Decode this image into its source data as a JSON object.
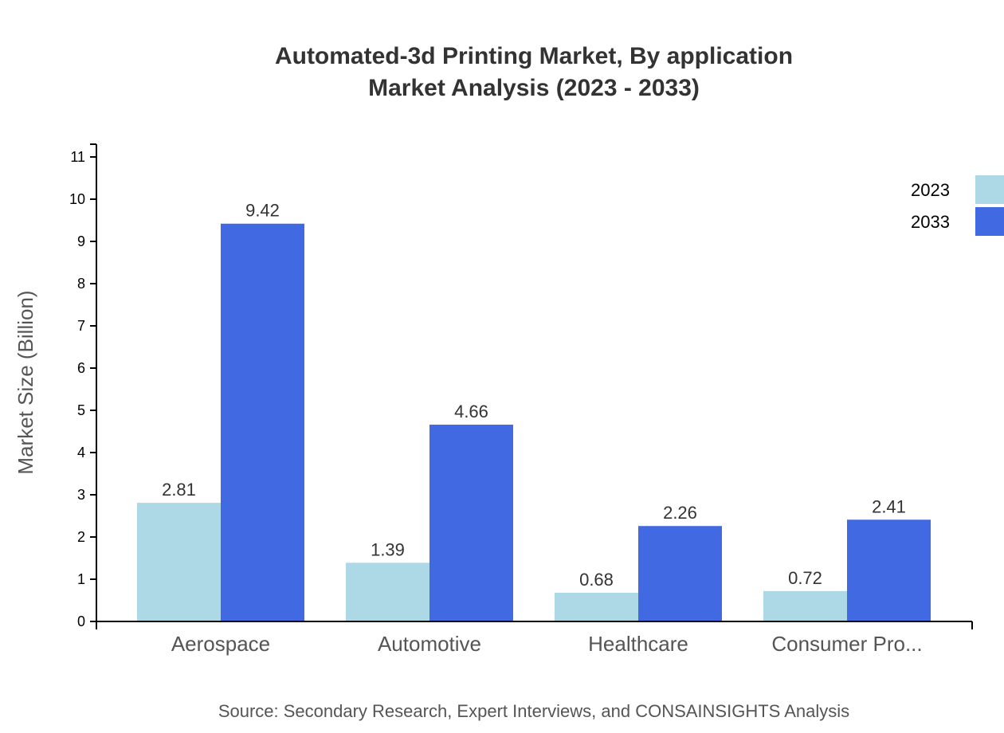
{
  "chart_data": {
    "type": "bar",
    "title": [
      "Automated-3d Printing Market, By application",
      "Market Analysis (2023 - 2033)"
    ],
    "xlabel": "",
    "ylabel": "Market Size (Billion)",
    "ylim": [
      0,
      11
    ],
    "yticks": [
      0,
      1,
      2,
      3,
      4,
      5,
      6,
      7,
      8,
      9,
      10,
      11
    ],
    "categories": [
      "Aerospace",
      "Automotive",
      "Healthcare",
      "Consumer Pro..."
    ],
    "series": [
      {
        "name": "2023",
        "color": "#ADD8E6",
        "values": [
          2.81,
          1.39,
          0.68,
          0.72
        ]
      },
      {
        "name": "2033",
        "color": "#4169E1",
        "values": [
          9.42,
          4.66,
          2.26,
          2.41
        ]
      }
    ],
    "legend_position": "top-right",
    "grid": false,
    "source": "Source: Secondary Research, Expert Interviews, and CONSAINSIGHTS Analysis"
  }
}
